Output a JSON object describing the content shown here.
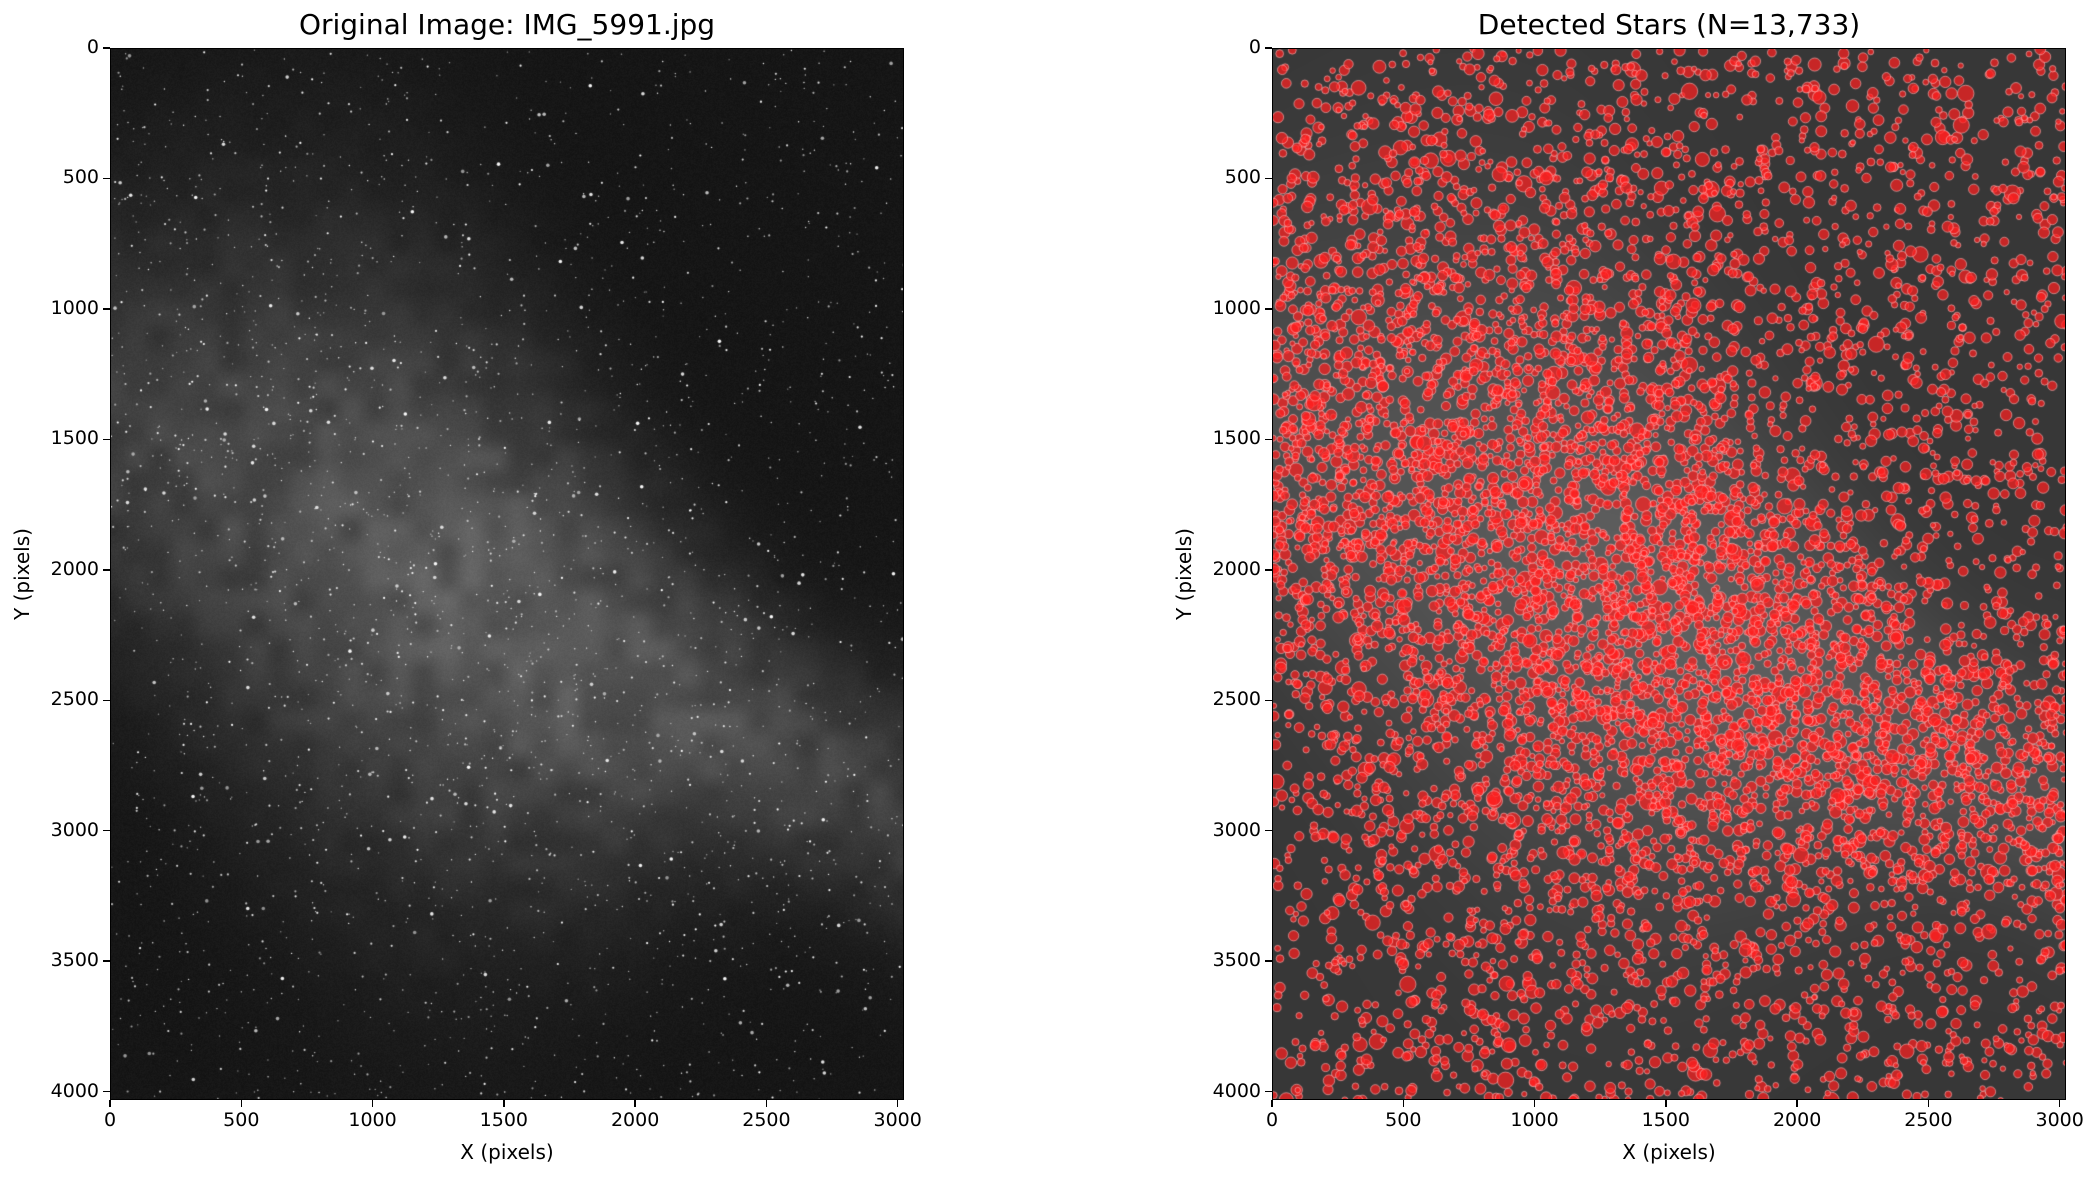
{
  "figure": {
    "panels": [
      {
        "id": "left",
        "title": "Original Image: IMG_5991.jpg",
        "xlabel": "X (pixels)",
        "ylabel": "Y (pixels)",
        "x_ticks": [
          "0",
          "500",
          "1000",
          "1500",
          "2000",
          "2500",
          "3000"
        ],
        "y_ticks": [
          "0",
          "500",
          "1000",
          "1500",
          "2000",
          "2500",
          "3000",
          "3500",
          "4000"
        ],
        "content": "milky-way-photo"
      },
      {
        "id": "right",
        "title": "Detected Stars (N=13,733)",
        "xlabel": "X (pixels)",
        "ylabel": "Y (pixels)",
        "x_ticks": [
          "0",
          "500",
          "1000",
          "1500",
          "2000",
          "2500",
          "3000"
        ],
        "y_ticks": [
          "0",
          "500",
          "1000",
          "1500",
          "2000",
          "2500",
          "3000",
          "3500",
          "4000"
        ],
        "content": "detected-stars-overlay",
        "marker_color": "#ff2020"
      }
    ],
    "image_extent": {
      "x": [
        0,
        3024
      ],
      "y": [
        0,
        4032
      ]
    },
    "detected_count": 13733
  }
}
